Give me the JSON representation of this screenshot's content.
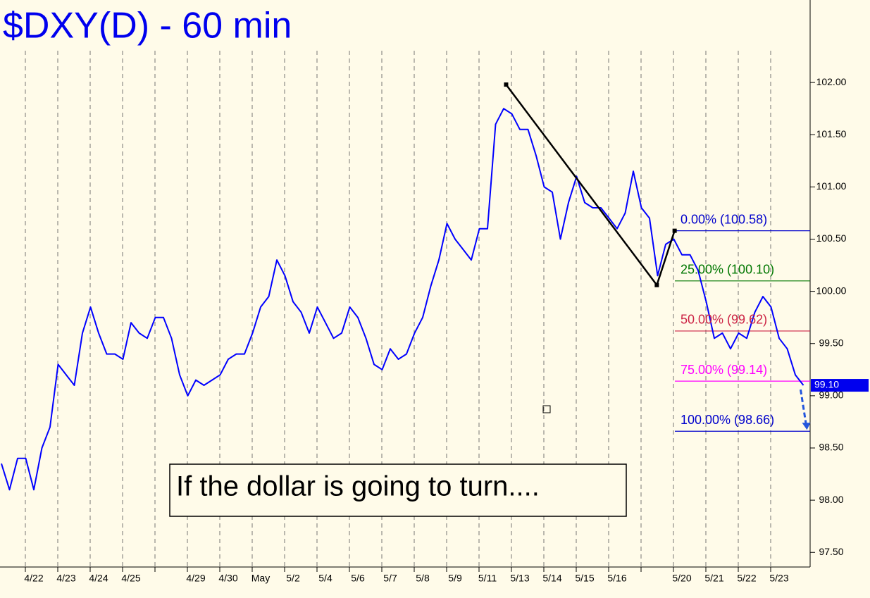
{
  "chart_data": {
    "type": "line",
    "title": "$DXY(D) - 60 min",
    "annotation": "If the dollar is going to turn....",
    "color": "#0000ff",
    "categories": [
      null,
      null,
      null,
      null,
      "4/22",
      null,
      null,
      null,
      "4/23",
      null,
      null,
      null,
      "4/24",
      null,
      null,
      null,
      "4/25",
      null,
      null,
      null,
      null,
      null,
      null,
      null,
      "4/29",
      null,
      null,
      null,
      "4/30",
      null,
      null,
      null,
      "May",
      null,
      null,
      null,
      "5/2",
      null,
      null,
      null,
      "5/4",
      null,
      null,
      null,
      "5/6",
      null,
      null,
      null,
      "5/7",
      null,
      null,
      null,
      "5/8",
      null,
      null,
      null,
      "5/9",
      null,
      null,
      null,
      "5/11",
      null,
      null,
      null,
      "5/13",
      null,
      null,
      null,
      "5/14",
      null,
      null,
      null,
      "5/15",
      null,
      null,
      null,
      "5/16",
      null,
      null,
      null,
      null,
      null,
      null,
      null,
      "5/20",
      null,
      null,
      null,
      "5/21",
      null,
      null,
      null,
      "5/22",
      null,
      null,
      null,
      "5/23",
      null,
      null,
      null
    ],
    "values": [
      98.35,
      98.1,
      98.4,
      98.4,
      98.1,
      98.5,
      98.7,
      99.3,
      99.2,
      99.1,
      99.6,
      99.85,
      99.6,
      99.4,
      99.4,
      99.35,
      99.7,
      99.6,
      99.55,
      99.75,
      99.75,
      99.55,
      99.2,
      99.0,
      99.15,
      99.1,
      99.15,
      99.2,
      99.35,
      99.4,
      99.4,
      99.6,
      99.85,
      99.95,
      100.3,
      100.15,
      99.9,
      99.8,
      99.6,
      99.85,
      99.7,
      99.55,
      99.6,
      99.85,
      99.75,
      99.55,
      99.3,
      99.25,
      99.45,
      99.35,
      99.4,
      99.6,
      99.75,
      100.05,
      100.3,
      100.65,
      100.5,
      100.4,
      100.3,
      100.6,
      100.6,
      101.6,
      101.75,
      101.7,
      101.55,
      101.55,
      101.3,
      101.0,
      100.95,
      100.5,
      100.85,
      101.1,
      100.85,
      100.8,
      100.8,
      100.7,
      100.6,
      100.75,
      101.15,
      100.8,
      100.7,
      100.15,
      100.45,
      100.5,
      100.35,
      100.35,
      100.2,
      99.9,
      99.55,
      99.6,
      99.45,
      99.6,
      99.55,
      99.8,
      99.95,
      99.85,
      99.55,
      99.45,
      99.2,
      99.1
    ],
    "last_price_label": "99.10",
    "ylim": [
      97.36,
      102.79
    ],
    "yticks": [
      {
        "value": 97.5,
        "label": "97.50"
      },
      {
        "value": 98,
        "label": "98.00"
      },
      {
        "value": 98.5,
        "label": "98.50"
      },
      {
        "value": 99,
        "label": "99.00"
      },
      {
        "value": 99.5,
        "label": "99.50"
      },
      {
        "value": 100,
        "label": "100.00"
      },
      {
        "value": 100.5,
        "label": "100.50"
      },
      {
        "value": 101,
        "label": "101.00"
      },
      {
        "value": 101.5,
        "label": "101.50"
      },
      {
        "value": 102,
        "label": "102.00"
      }
    ],
    "fib_levels": [
      {
        "label": "0.00% (100.58)",
        "value": 100.58,
        "color": "#0000cc"
      },
      {
        "label": "25.00% (100.10)",
        "value": 100.1,
        "color": "#007700"
      },
      {
        "label": "50.00% (99.62)",
        "value": 99.62,
        "color": "#cc2244"
      },
      {
        "label": "75.00% (99.14)",
        "value": 99.14,
        "color": "#ff00ff"
      },
      {
        "label": "100.00% (98.66)",
        "value": 98.66,
        "color": "#0000cc"
      }
    ],
    "pattern": {
      "at": [
        62.3,
        80.9,
        83.1
      ],
      "values": [
        101.98,
        100.06,
        100.58
      ],
      "color": "#000000"
    }
  }
}
